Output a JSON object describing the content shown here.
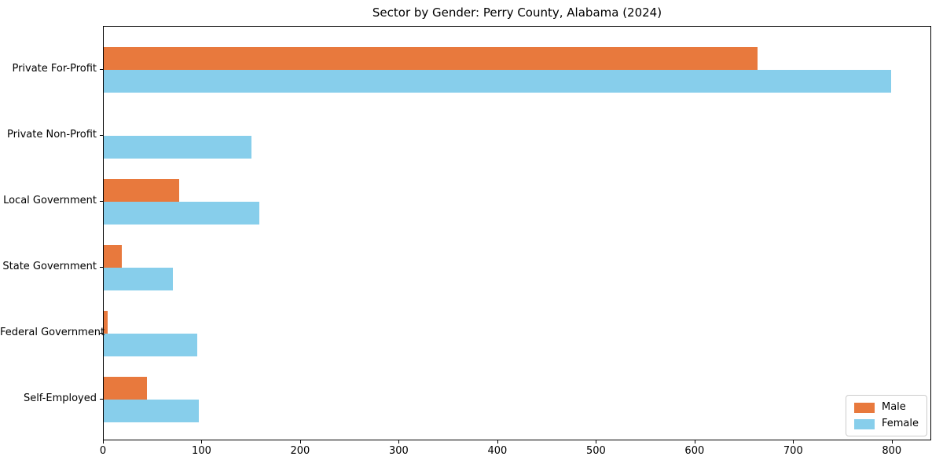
{
  "chart_data": {
    "type": "bar",
    "orientation": "horizontal",
    "title": "Sector by Gender: Perry County, Alabama (2024)",
    "categories": [
      "Private For-Profit",
      "Private Non-Profit",
      "Local Government",
      "State Government",
      "Federal Government",
      "Self-Employed"
    ],
    "series": [
      {
        "name": "Male",
        "color": "#e8793d",
        "values": [
          664,
          0,
          77,
          18,
          4,
          44
        ]
      },
      {
        "name": "Female",
        "color": "#87ceeb",
        "values": [
          800,
          150,
          158,
          70,
          95,
          97
        ]
      }
    ],
    "xlabel": "",
    "ylabel": "",
    "xlim": [
      0,
      840
    ],
    "xticks": [
      0,
      100,
      200,
      300,
      400,
      500,
      600,
      700,
      800
    ],
    "grid": false,
    "legend": {
      "position": "lower-right",
      "entries": [
        "Male",
        "Female"
      ]
    }
  }
}
